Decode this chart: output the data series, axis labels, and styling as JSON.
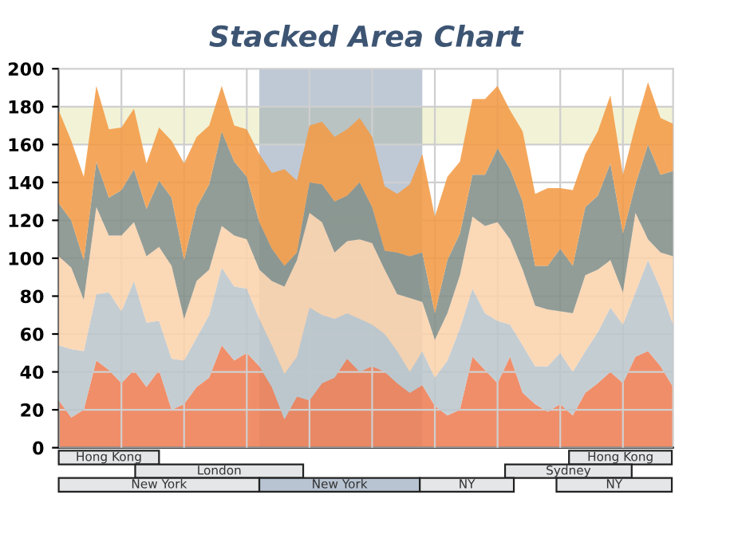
{
  "chart_data": {
    "type": "area",
    "title": "Stacked Area Chart",
    "stacked": true,
    "categories": [
      null,
      null,
      null,
      null,
      null,
      null,
      null,
      null,
      null,
      null,
      null,
      null,
      null,
      null,
      null,
      null,
      null,
      null,
      null,
      null,
      null,
      null,
      null,
      null,
      null,
      null,
      null,
      null,
      null,
      null,
      null,
      null,
      null,
      null,
      null,
      null,
      null,
      null,
      null,
      null,
      null,
      null,
      null,
      null,
      null,
      null,
      null,
      null,
      null,
      null
    ],
    "series": [
      {
        "color": "#ee7e55",
        "values": [
          25,
          16,
          20,
          46,
          41,
          34,
          41,
          32,
          41,
          20,
          23,
          32,
          37,
          54,
          46,
          50,
          43,
          32,
          15,
          27,
          25,
          34,
          37,
          47,
          40,
          43,
          40,
          34,
          29,
          33,
          22,
          17,
          20,
          48,
          41,
          34,
          48,
          29,
          23,
          19,
          23,
          17,
          29,
          34,
          40,
          34,
          48,
          51,
          43,
          32
        ]
      },
      {
        "color": "#bcc6cc",
        "values": [
          29,
          36,
          31,
          35,
          41,
          38,
          47,
          34,
          26,
          27,
          23,
          26,
          33,
          41,
          39,
          34,
          25,
          22,
          24,
          21,
          49,
          36,
          31,
          24,
          28,
          22,
          20,
          17,
          11,
          18,
          15,
          29,
          43,
          36,
          30,
          33,
          17,
          25,
          20,
          24,
          27,
          23,
          22,
          27,
          34,
          31,
          34,
          48,
          41,
          33
        ]
      },
      {
        "color": "#fad3ac",
        "values": [
          47,
          43,
          27,
          46,
          30,
          40,
          31,
          35,
          39,
          49,
          22,
          30,
          24,
          22,
          27,
          26,
          26,
          34,
          46,
          51,
          50,
          49,
          35,
          38,
          42,
          43,
          34,
          30,
          39,
          26,
          20,
          25,
          28,
          38,
          46,
          52,
          45,
          40,
          32,
          30,
          22,
          31,
          40,
          33,
          25,
          17,
          42,
          11,
          19,
          36
        ]
      },
      {
        "color": "#848f89",
        "values": [
          28,
          25,
          21,
          24,
          20,
          24,
          28,
          25,
          35,
          36,
          31,
          39,
          45,
          50,
          39,
          33,
          25,
          17,
          11,
          4,
          16,
          20,
          27,
          24,
          30,
          19,
          10,
          22,
          22,
          26,
          14,
          28,
          22,
          22,
          27,
          39,
          37,
          36,
          21,
          23,
          33,
          25,
          36,
          39,
          51,
          31,
          15,
          50,
          41,
          45
        ]
      },
      {
        "color": "#f29b45",
        "values": [
          49,
          42,
          44,
          40,
          36,
          33,
          32,
          24,
          28,
          30,
          51,
          37,
          31,
          24,
          19,
          25,
          36,
          40,
          51,
          38,
          30,
          33,
          34,
          35,
          34,
          37,
          34,
          31,
          38,
          52,
          51,
          44,
          38,
          40,
          40,
          33,
          31,
          37,
          38,
          41,
          32,
          40,
          28,
          34,
          36,
          31,
          31,
          33,
          30,
          25
        ]
      }
    ],
    "ylim": [
      0,
      200
    ],
    "yticks": [
      0,
      20,
      40,
      60,
      80,
      100,
      120,
      140,
      160,
      180,
      200
    ],
    "grid": true,
    "tick_labels": "y",
    "bands": [
      {
        "axis": "y",
        "from": 160,
        "to": 180,
        "color": "#f2f2d6"
      }
    ],
    "annotations": [
      "Hong Kong",
      "Hong Kong",
      "London",
      "Sydney",
      "New York",
      "New York",
      "NY",
      "NY"
    ]
  }
}
